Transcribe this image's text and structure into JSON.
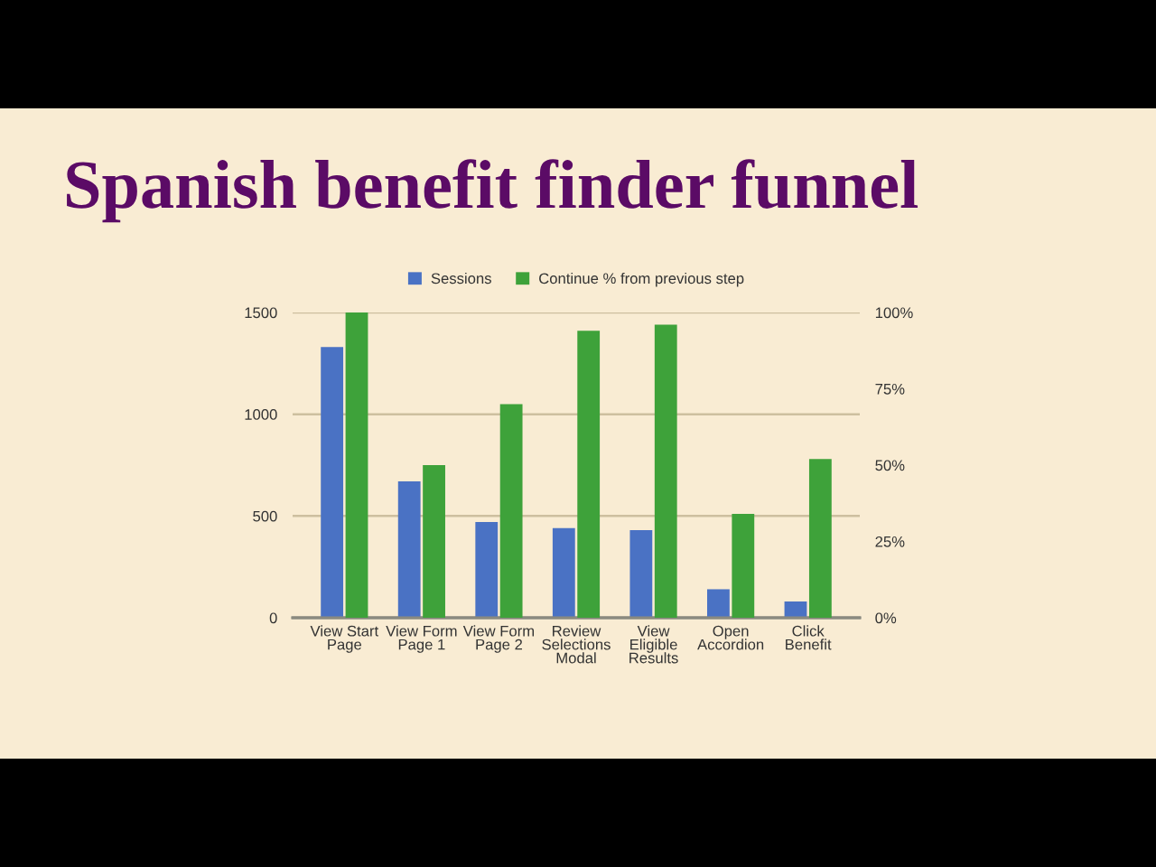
{
  "chart_data": {
    "type": "bar",
    "title": "Spanish benefit finder funnel",
    "categories": [
      "View Start\nPage",
      "View Form\nPage 1",
      "View Form\nPage 2",
      "Review\nSelections\nModal",
      "View\nEligible\nResults",
      "Open\nAccordion",
      "Click\nBenefit"
    ],
    "series": [
      {
        "name": "Sessions",
        "color": "#4a72c4",
        "values": [
          1330,
          670,
          470,
          440,
          430,
          140,
          80
        ]
      },
      {
        "name": "Continue % from previous step",
        "color": "#3ea23a",
        "axis": "y2",
        "values": [
          100,
          50,
          70,
          94,
          96,
          34,
          52
        ]
      }
    ],
    "ylim": [
      0,
      1500
    ],
    "yticks": [
      0,
      500,
      1000,
      1500
    ],
    "y2lim": [
      0,
      100
    ],
    "y2ticks": [
      {
        "value": 0,
        "label": "0%"
      },
      {
        "value": 25,
        "label": "25%"
      },
      {
        "value": 50,
        "label": "50%"
      },
      {
        "value": 75,
        "label": "75%"
      },
      {
        "value": 100,
        "label": "100%"
      }
    ],
    "grid": "y",
    "legend": "top"
  }
}
